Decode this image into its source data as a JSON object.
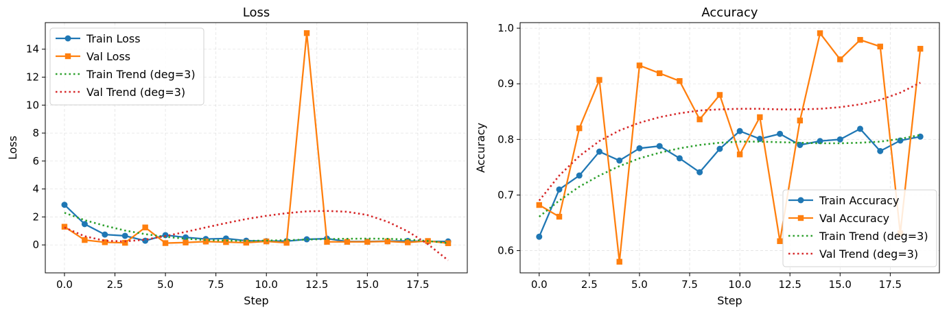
{
  "chart_data": [
    {
      "type": "line",
      "title": "Loss",
      "xlabel": "Step",
      "ylabel": "Loss",
      "xlim": [
        -0.95,
        19.95
      ],
      "ylim": [
        -2.0,
        15.9
      ],
      "xticks": [
        0.0,
        2.5,
        5.0,
        7.5,
        10.0,
        12.5,
        15.0,
        17.5
      ],
      "xtick_labels": [
        "0.0",
        "2.5",
        "5.0",
        "7.5",
        "10.0",
        "12.5",
        "15.0",
        "17.5"
      ],
      "yticks": [
        0,
        2,
        4,
        6,
        8,
        10,
        12,
        14
      ],
      "ytick_labels": [
        "0",
        "2",
        "4",
        "6",
        "8",
        "10",
        "12",
        "14"
      ],
      "grid": true,
      "legend_position": "top-left",
      "x": [
        0,
        1,
        2,
        3,
        4,
        5,
        6,
        7,
        8,
        9,
        10,
        11,
        12,
        13,
        14,
        15,
        16,
        17,
        18,
        19
      ],
      "series": [
        {
          "name": "Train Loss",
          "color": "#1f77b4",
          "marker": "circle",
          "style": "solid",
          "values": [
            2.87,
            1.49,
            0.74,
            0.65,
            0.3,
            0.7,
            0.54,
            0.42,
            0.46,
            0.3,
            0.27,
            0.27,
            0.4,
            0.45,
            0.24,
            0.24,
            0.27,
            0.28,
            0.25,
            0.25
          ]
        },
        {
          "name": "Val Loss",
          "color": "#ff7f0e",
          "marker": "square",
          "style": "solid",
          "values": [
            1.3,
            0.35,
            0.19,
            0.15,
            1.25,
            0.13,
            0.17,
            0.24,
            0.2,
            0.16,
            0.25,
            0.15,
            15.15,
            0.22,
            0.22,
            0.22,
            0.25,
            0.18,
            0.28,
            0.12
          ]
        },
        {
          "name": "Train Trend (deg=3)",
          "color": "#2ca02c",
          "marker": "none",
          "style": "dotted",
          "values": [
            2.3,
            1.77,
            1.37,
            1.03,
            0.77,
            0.58,
            0.44,
            0.35,
            0.31,
            0.29,
            0.31,
            0.34,
            0.38,
            0.42,
            0.44,
            0.45,
            0.44,
            0.38,
            0.28,
            0.13
          ]
        },
        {
          "name": "Val Trend (deg=3)",
          "color": "#d62728",
          "marker": "none",
          "style": "dotted",
          "values": [
            1.25,
            0.62,
            0.3,
            0.25,
            0.38,
            0.63,
            0.93,
            1.25,
            1.56,
            1.85,
            2.08,
            2.27,
            2.4,
            2.43,
            2.37,
            2.14,
            1.66,
            0.97,
            0.05,
            -1.1
          ]
        }
      ]
    },
    {
      "type": "line",
      "title": "Accuracy",
      "xlabel": "Step",
      "ylabel": "Accuracy",
      "xlim": [
        -0.95,
        19.95
      ],
      "ylim": [
        0.56,
        1.01
      ],
      "xticks": [
        0.0,
        2.5,
        5.0,
        7.5,
        10.0,
        12.5,
        15.0,
        17.5
      ],
      "xtick_labels": [
        "0.0",
        "2.5",
        "5.0",
        "7.5",
        "10.0",
        "12.5",
        "15.0",
        "17.5"
      ],
      "yticks": [
        0.6,
        0.7,
        0.8,
        0.9,
        1.0
      ],
      "ytick_labels": [
        "0.6",
        "0.7",
        "0.8",
        "0.9",
        "1.0"
      ],
      "grid": true,
      "legend_position": "bottom-right",
      "x": [
        0,
        1,
        2,
        3,
        4,
        5,
        6,
        7,
        8,
        9,
        10,
        11,
        12,
        13,
        14,
        15,
        16,
        17,
        18,
        19
      ],
      "series": [
        {
          "name": "Train Accuracy",
          "color": "#1f77b4",
          "marker": "circle",
          "style": "solid",
          "values": [
            0.625,
            0.71,
            0.735,
            0.778,
            0.762,
            0.784,
            0.788,
            0.766,
            0.741,
            0.783,
            0.815,
            0.801,
            0.81,
            0.79,
            0.797,
            0.8,
            0.819,
            0.779,
            0.798,
            0.805
          ]
        },
        {
          "name": "Val Accuracy",
          "color": "#ff7f0e",
          "marker": "square",
          "style": "solid",
          "values": [
            0.682,
            0.661,
            0.82,
            0.907,
            0.58,
            0.933,
            0.919,
            0.905,
            0.836,
            0.88,
            0.773,
            0.84,
            0.617,
            0.834,
            0.991,
            0.944,
            0.979,
            0.967,
            0.631,
            0.963
          ]
        },
        {
          "name": "Train Trend (deg=3)",
          "color": "#2ca02c",
          "marker": "none",
          "style": "dotted",
          "values": [
            0.661,
            0.69,
            0.715,
            0.735,
            0.752,
            0.766,
            0.776,
            0.784,
            0.79,
            0.794,
            0.796,
            0.796,
            0.795,
            0.794,
            0.793,
            0.793,
            0.794,
            0.796,
            0.801,
            0.808
          ]
        },
        {
          "name": "Val Trend (deg=3)",
          "color": "#d62728",
          "marker": "none",
          "style": "dotted",
          "values": [
            0.69,
            0.735,
            0.77,
            0.797,
            0.816,
            0.83,
            0.84,
            0.847,
            0.852,
            0.854,
            0.855,
            0.855,
            0.854,
            0.854,
            0.855,
            0.858,
            0.863,
            0.871,
            0.884,
            0.902
          ]
        }
      ]
    }
  ]
}
